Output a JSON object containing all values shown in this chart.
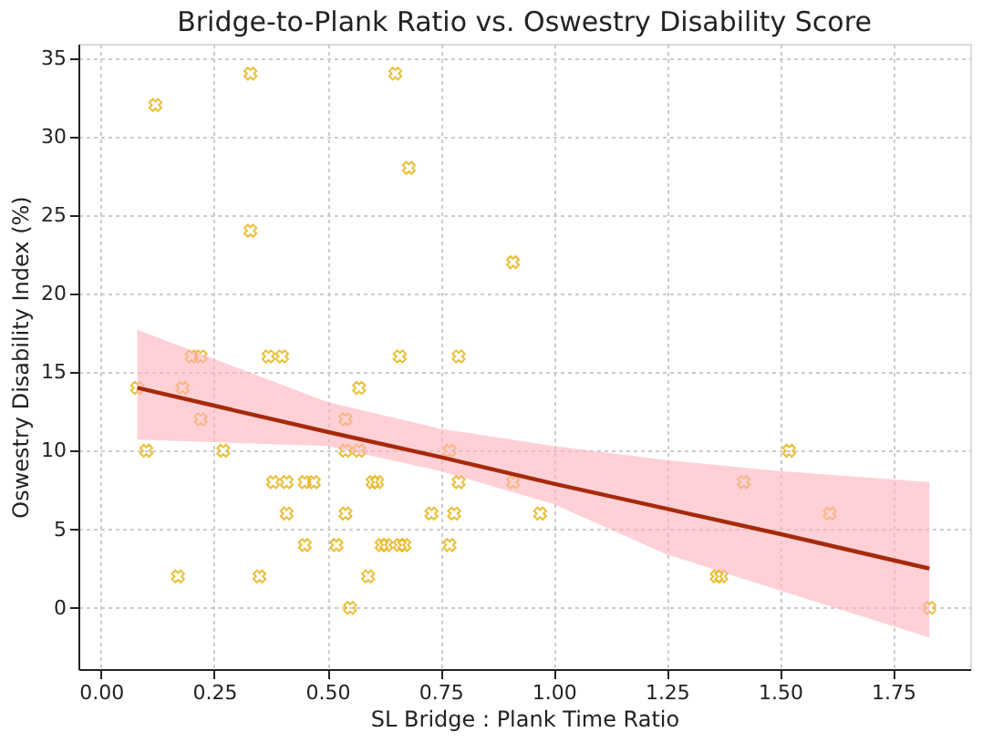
{
  "chart_data": {
    "type": "scatter",
    "title": "Bridge-to-Plank Ratio vs. Oswestry Disability Score",
    "xlabel": "SL Bridge : Plank Time Ratio",
    "ylabel": "Oswestry Disability Index (%)",
    "xlim": [
      -0.05,
      1.92
    ],
    "ylim": [
      -3.9,
      35.9
    ],
    "xticks": [
      {
        "value": 0,
        "label": "0.00"
      },
      {
        "value": 0.25,
        "label": "0.25"
      },
      {
        "value": 0.5,
        "label": "0.50"
      },
      {
        "value": 0.75,
        "label": "0.75"
      },
      {
        "value": 1,
        "label": "1.00"
      },
      {
        "value": 1.25,
        "label": "1.25"
      },
      {
        "value": 1.5,
        "label": "1.50"
      },
      {
        "value": 1.75,
        "label": "1.75"
      }
    ],
    "yticks": [
      0,
      5,
      10,
      15,
      20,
      25,
      30,
      35
    ],
    "grid": true,
    "series": [
      {
        "type": "scatter",
        "marker": "cross",
        "color": "#e8b923",
        "x": [
          0.08,
          0.18,
          0.22,
          0.1,
          0.27,
          0.57,
          0.54,
          0.54,
          0.57,
          0.77,
          0.38,
          0.41,
          0.45,
          0.47,
          0.6,
          0.61,
          0.79,
          0.91,
          0.41,
          0.54,
          0.73,
          0.78,
          0.97,
          0.45,
          0.52,
          0.62,
          0.63,
          0.66,
          0.67,
          0.77,
          0.17,
          0.35,
          0.59,
          0.55,
          0.12,
          0.33,
          0.65,
          0.68,
          0.33,
          0.91,
          0.2,
          0.22,
          0.37,
          0.4,
          0.66,
          0.79,
          1.52,
          1.42,
          1.61,
          1.36,
          1.37,
          1.83
        ],
        "values": [
          14,
          14,
          12,
          10,
          10,
          14,
          12,
          10,
          10,
          10,
          8,
          8,
          8,
          8,
          8,
          8,
          8,
          8,
          6,
          6,
          6,
          6,
          6,
          4,
          4,
          4,
          4,
          4,
          4,
          4,
          2,
          2,
          2,
          0,
          32,
          34,
          34,
          28,
          24,
          22,
          16,
          16,
          16,
          16,
          16,
          16,
          10,
          8,
          6,
          2,
          2,
          0
        ]
      },
      {
        "type": "line",
        "line_style": "solid",
        "color": "#a52a0a",
        "x": [
          0.08,
          0.5,
          0.75,
          1.0,
          1.25,
          1.5,
          1.83
        ],
        "values": [
          14.0,
          11.2,
          9.6,
          7.9,
          6.3,
          4.7,
          2.5
        ],
        "lower": [
          10.7,
          10.3,
          8.7,
          6.6,
          3.4,
          1.1,
          -1.9
        ],
        "upper": [
          17.7,
          13.1,
          11.4,
          10.3,
          9.4,
          8.7,
          8.0
        ]
      }
    ]
  }
}
